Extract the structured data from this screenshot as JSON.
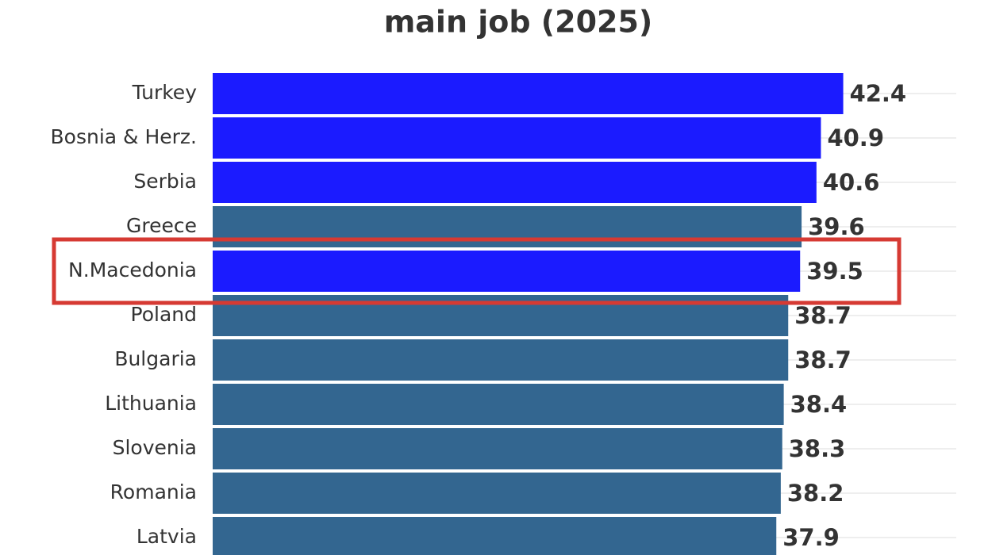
{
  "chart_data": {
    "type": "bar",
    "orientation": "horizontal",
    "title": "main job (2025)",
    "categories": [
      "Turkey",
      "Bosnia & Herz.",
      "Serbia",
      "Greece",
      "N.Macedonia",
      "Poland",
      "Bulgaria",
      "Lithuania",
      "Slovenia",
      "Romania",
      "Latvia"
    ],
    "values": [
      42.4,
      40.9,
      40.6,
      39.6,
      39.5,
      38.7,
      38.7,
      38.4,
      38.3,
      38.2,
      37.9
    ],
    "colors": [
      "#1b1bff",
      "#1b1bff",
      "#1b1bff",
      "#336690",
      "#1b1bff",
      "#336690",
      "#336690",
      "#336690",
      "#336690",
      "#336690",
      "#336690"
    ],
    "xlim": [
      0,
      50
    ],
    "highlight": {
      "index": 4,
      "color": "#d63a33"
    }
  }
}
